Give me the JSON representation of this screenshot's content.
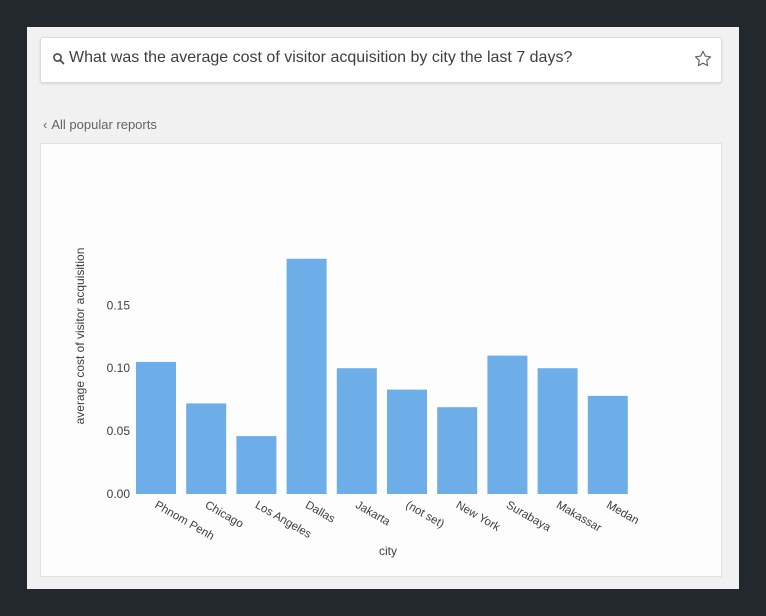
{
  "search": {
    "query": "What was the average cost of visitor acquisition by city the last 7 days?",
    "search_icon": "search-icon",
    "star_icon": "star-icon"
  },
  "nav": {
    "back_label": "All popular reports",
    "back_icon": "chevron-left-icon"
  },
  "chart_data": {
    "type": "bar",
    "categories": [
      "Phnom Penh",
      "Chicago",
      "Los Angeles",
      "Dallas",
      "Jakarta",
      "(not set)",
      "New York",
      "Surabaya",
      "Makassar",
      "Medan"
    ],
    "values": [
      0.105,
      0.072,
      0.046,
      0.187,
      0.1,
      0.083,
      0.069,
      0.11,
      0.1,
      0.078
    ],
    "xlabel": "city",
    "ylabel": "average cost of visitor acquisition",
    "ylim": [
      0,
      0.19
    ],
    "yticks": [
      0.0,
      0.05,
      0.1,
      0.15
    ],
    "ytick_labels": [
      "0.00",
      "0.05",
      "0.10",
      "0.15"
    ],
    "bar_color": "#6daee8",
    "grid": false
  }
}
